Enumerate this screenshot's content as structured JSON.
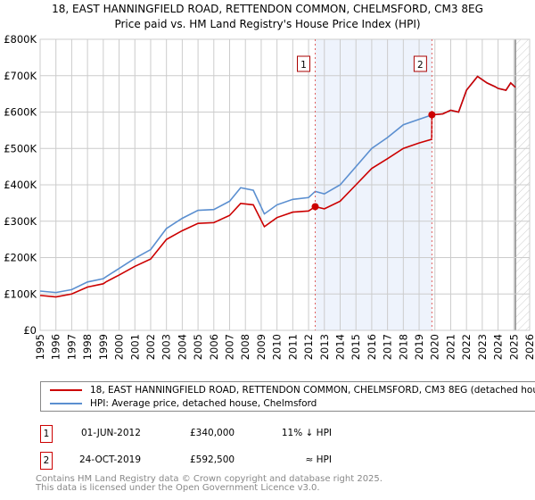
{
  "chart_data": {
    "type": "line",
    "title": "18, EAST HANNINGFIELD ROAD, RETTENDON COMMON, CHELMSFORD, CM3 8EG",
    "subtitle": "Price paid vs. HM Land Registry's House Price Index (HPI)",
    "xlim": [
      1995,
      2026
    ],
    "ylim": [
      0,
      800000
    ],
    "x_ticks": [
      "1995",
      "1996",
      "1997",
      "1998",
      "1999",
      "2000",
      "2001",
      "2002",
      "2003",
      "2004",
      "2005",
      "2006",
      "2007",
      "2008",
      "2009",
      "2010",
      "2011",
      "2012",
      "2013",
      "2014",
      "2015",
      "2016",
      "2017",
      "2018",
      "2019",
      "2020",
      "2021",
      "2022",
      "2023",
      "2024",
      "2025",
      "2026"
    ],
    "y_ticks": [
      {
        "v": 0,
        "label": "£0"
      },
      {
        "v": 100000,
        "label": "£100K"
      },
      {
        "v": 200000,
        "label": "£200K"
      },
      {
        "v": 300000,
        "label": "£300K"
      },
      {
        "v": 400000,
        "label": "£400K"
      },
      {
        "v": 500000,
        "label": "£500K"
      },
      {
        "v": 600000,
        "label": "£600K"
      },
      {
        "v": 700000,
        "label": "£700K"
      },
      {
        "v": 800000,
        "label": "£800K"
      }
    ],
    "grid": true,
    "shaded_range": [
      2012.42,
      2019.81
    ],
    "hatched_from": 2025.1,
    "series": [
      {
        "name": "18, EAST HANNINGFIELD ROAD, RETTENDON COMMON, CHELMSFORD, CM3 8EG (detached house)",
        "color": "#cc0000",
        "x": [
          1995,
          1996,
          1997,
          1998,
          1999,
          1999.2,
          2000,
          2001,
          2002,
          2003,
          2004,
          2005,
          2006,
          2007,
          2007.7,
          2008.5,
          2009.2,
          2010,
          2011,
          2012,
          2012.42,
          2013,
          2014,
          2015,
          2016,
          2017,
          2018,
          2019,
          2019.8,
          2019.81,
          2020.5,
          2021,
          2021.5,
          2022,
          2022.7,
          2023.3,
          2023.8,
          2024,
          2024.5,
          2024.8,
          2025.1
        ],
        "y": [
          96000,
          92000,
          100000,
          119000,
          128000,
          134000,
          152000,
          176000,
          196000,
          250000,
          274000,
          294000,
          296000,
          316000,
          349000,
          345000,
          285000,
          310000,
          325000,
          328000,
          340000,
          334000,
          355000,
          400000,
          445000,
          472000,
          500000,
          515000,
          525000,
          592500,
          595000,
          605000,
          600000,
          660000,
          698000,
          680000,
          670000,
          665000,
          660000,
          680000,
          668000
        ]
      },
      {
        "name": "HPI: Average price, detached house, Chelmsford",
        "color": "#5b8fd0",
        "x": [
          1995,
          1996,
          1997,
          1998,
          1999,
          1999.2,
          2000,
          2001,
          2002,
          2003,
          2004,
          2005,
          2006,
          2007,
          2007.7,
          2008.5,
          2009.2,
          2010,
          2011,
          2012,
          2012.42,
          2013,
          2014,
          2015,
          2016,
          2017,
          2018,
          2019,
          2019.8,
          2020.5,
          2021,
          2021.5,
          2022,
          2022.7,
          2023.3,
          2023.8,
          2024,
          2024.5,
          2024.8,
          2025.1
        ],
        "y": [
          108000,
          104000,
          112000,
          133000,
          142000,
          148000,
          170000,
          198000,
          222000,
          280000,
          308000,
          330000,
          332000,
          355000,
          392000,
          385000,
          320000,
          345000,
          360000,
          365000,
          382000,
          375000,
          400000,
          450000,
          500000,
          530000,
          565000,
          580000,
          592000,
          595000,
          605000,
          600000,
          660000,
          698000,
          680000,
          670000,
          665000,
          660000,
          680000,
          668000
        ]
      }
    ],
    "sales": [
      {
        "id": "1",
        "x": 2012.42,
        "y": 340000
      },
      {
        "id": "2",
        "x": 2019.81,
        "y": 592500
      }
    ]
  },
  "legend": {
    "property": "18, EAST HANNINGFIELD ROAD, RETTENDON COMMON, CHELMSFORD, CM3 8EG (detached house)",
    "hpi": "HPI: Average price, detached house, Chelmsford"
  },
  "transactions": [
    {
      "id": "1",
      "date": "01-JUN-2012",
      "price": "£340,000",
      "hpi": "11% ↓ HPI"
    },
    {
      "id": "2",
      "date": "24-OCT-2019",
      "price": "£592,500",
      "hpi": "≈ HPI"
    }
  ],
  "footer": {
    "line1": "Contains HM Land Registry data © Crown copyright and database right 2025.",
    "line2": "This data is licensed under the Open Government Licence v3.0."
  }
}
